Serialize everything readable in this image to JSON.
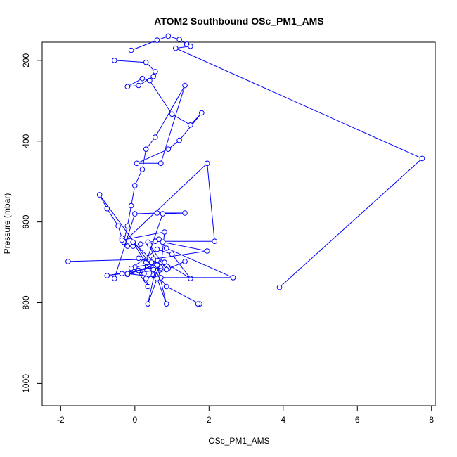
{
  "chart_data": {
    "type": "line",
    "title": "ATOM2 Southbound OSc_PM1_AMS",
    "xlabel": "OSc_PM1_AMS",
    "ylabel": "Pressure (mbar)",
    "xlim": [
      -2.5,
      8.1
    ],
    "ylim": [
      1055,
      155
    ],
    "y_reversed": true,
    "x_ticks": [
      -2,
      0,
      2,
      4,
      6,
      8
    ],
    "y_ticks": [
      200,
      400,
      600,
      800,
      1000
    ],
    "grid": false,
    "line_color": "#0000ff",
    "marker": "open-circle",
    "series": [
      {
        "x": [
          -0.1,
          0.6,
          0.9,
          1.2,
          1.4,
          1.5,
          1.1,
          7.75,
          3.9
        ],
        "y": [
          175,
          150,
          140,
          148,
          160,
          165,
          170,
          443,
          762
        ]
      },
      {
        "x": [
          -0.55,
          0.3,
          0.55,
          0.5,
          0.1,
          -0.2,
          0.2,
          0.4,
          1.0,
          1.5,
          1.8,
          1.2,
          0.9,
          0.05,
          0.7,
          1.35,
          0.55,
          0.3,
          0.2,
          0.0,
          -0.1,
          -0.2,
          -0.3,
          1.95,
          2.15,
          0.55,
          0.35,
          0.15,
          -0.05,
          -0.2,
          -0.35,
          -0.45,
          -0.75,
          -0.95,
          0.85,
          1.75,
          1.7
        ],
        "y": [
          200,
          205,
          228,
          240,
          262,
          265,
          245,
          250,
          333,
          360,
          330,
          398,
          420,
          455,
          455,
          262,
          390,
          420,
          470,
          510,
          560,
          610,
          650,
          455,
          648,
          648,
          650,
          655,
          660,
          660,
          640,
          610,
          567,
          533,
          760,
          803,
          803
        ]
      },
      {
        "x": [
          -0.35,
          0.8,
          0.7,
          -0.05,
          0.5,
          1.35,
          0.3,
          0.35,
          0.0,
          0.7,
          0.9,
          -0.2,
          0.1,
          0.6,
          0.8,
          1.5,
          1.0,
          0.6,
          -0.1,
          0.25,
          0.3,
          0.75,
          1.35,
          0.6,
          0.0,
          -0.55
        ],
        "y": [
          645,
          625,
          715,
          650,
          732,
          698,
          740,
          760,
          712,
          700,
          715,
          730,
          720,
          705,
          700,
          740,
          680,
          668,
          715,
          728,
          700,
          580,
          578,
          578,
          580,
          740
        ]
      },
      {
        "x": [
          -1.8,
          0.5,
          1.95,
          0.75,
          0.65,
          0.85,
          2.65,
          0.7,
          -0.2,
          0.5,
          -0.35,
          -0.75,
          0.55,
          0.85,
          0.4,
          0.6,
          0.85,
          0.6,
          0.35,
          0.55,
          0.5,
          0.45,
          0.1
        ],
        "y": [
          698,
          692,
          672,
          650,
          643,
          665,
          738,
          738,
          728,
          712,
          728,
          733,
          713,
          718,
          657,
          707,
          803,
          740,
          803,
          720,
          718,
          700,
          690
        ]
      }
    ]
  }
}
